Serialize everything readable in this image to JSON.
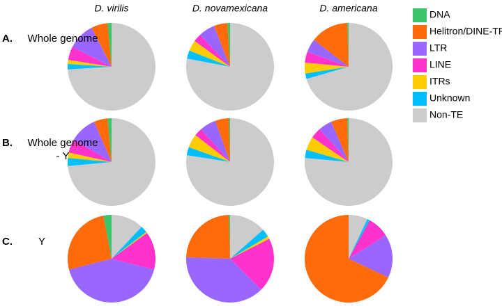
{
  "columns": [
    "D. virilis",
    "D. novamexicana",
    "D. americana"
  ],
  "rows": [
    {
      "letter": "A.",
      "label": "Whole genome"
    },
    {
      "letter": "B.",
      "label": "Whole genome - Y"
    },
    {
      "letter": "C.",
      "label": "Y"
    }
  ],
  "legend": [
    {
      "name": "DNA",
      "color": "#3cc46a"
    },
    {
      "name": "Helitron/DINE-TR",
      "color": "#ff6a0a"
    },
    {
      "name": "LTR",
      "color": "#9966ff"
    },
    {
      "name": "LINE",
      "color": "#ff33cc"
    },
    {
      "name": "ITRs",
      "color": "#ffcc00"
    },
    {
      "name": "Unknown",
      "color": "#00bfff"
    },
    {
      "name": "Non-TE",
      "color": "#cccccc"
    }
  ],
  "chart_data": [
    {
      "type": "pie",
      "values": [
        1.5,
        6,
        10,
        5,
        1.5,
        2,
        74
      ]
    },
    {
      "type": "pie",
      "values": [
        1,
        5,
        6,
        3,
        4,
        3,
        78
      ]
    },
    {
      "type": "pie",
      "values": [
        0.5,
        14,
        5,
        4,
        4,
        2,
        70.5
      ]
    },
    {
      "type": "pie",
      "values": [
        1.5,
        5,
        10,
        5,
        2,
        3,
        73.5
      ]
    },
    {
      "type": "pie",
      "values": [
        0.5,
        5,
        6,
        3,
        5,
        3,
        77.5
      ]
    },
    {
      "type": "pie",
      "values": [
        0.5,
        6,
        5,
        4,
        5,
        3,
        76.5
      ]
    },
    {
      "type": "pie",
      "values": [
        3,
        26,
        42,
        14,
        0.5,
        2.5,
        12
      ]
    },
    {
      "type": "pie",
      "values": [
        0.5,
        24,
        38,
        20,
        1,
        3,
        13.5
      ]
    },
    {
      "type": "pie",
      "values": [
        0,
        68,
        16,
        8,
        0,
        1,
        7
      ]
    }
  ]
}
